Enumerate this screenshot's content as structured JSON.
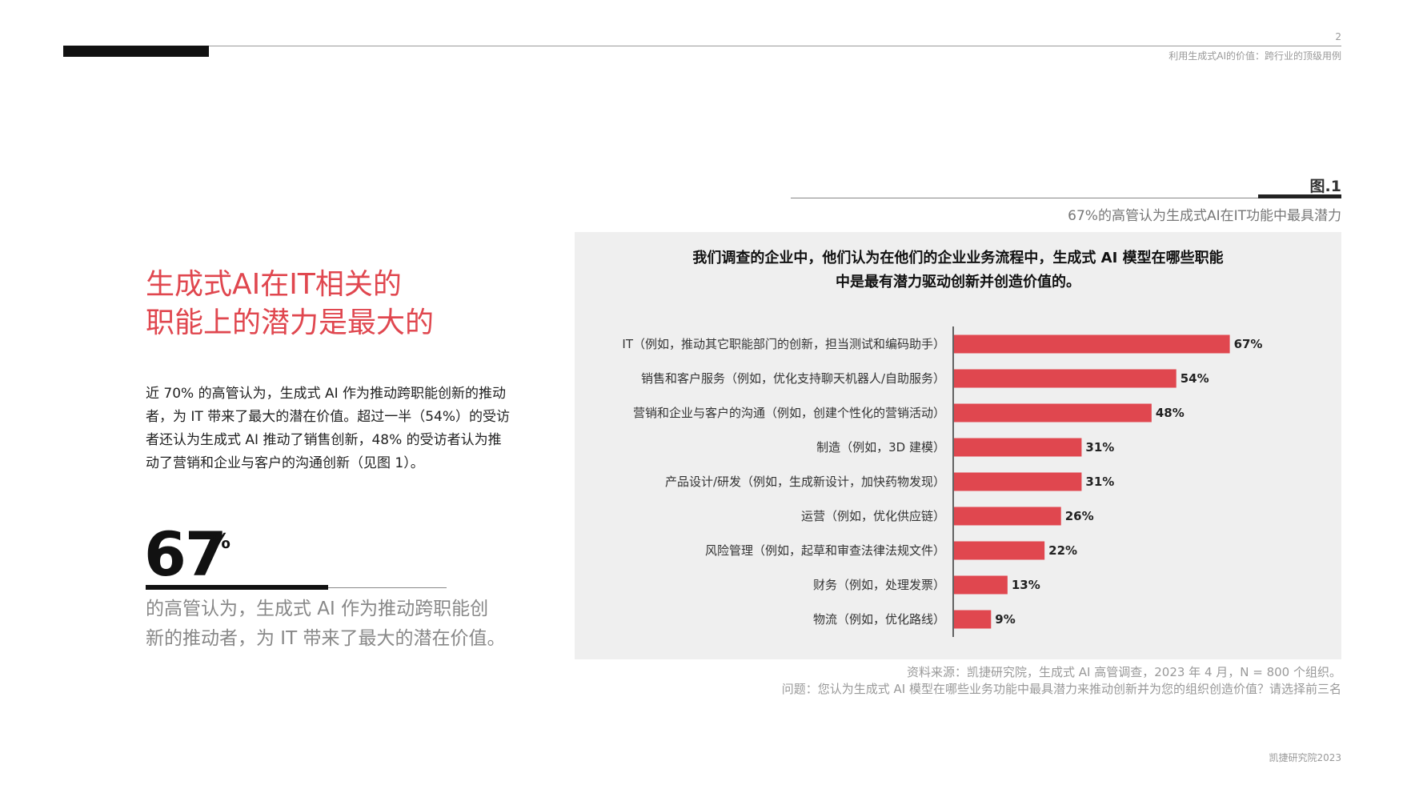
{
  "header": {
    "page_number": "2",
    "subtitle": "利用生成式AI的价值：跨行业的顶级用例"
  },
  "left": {
    "headline_line1": "生成式AI在IT相关的",
    "headline_line2": "职能上的潜力是最大的",
    "body": "近 70% 的高管认为，生成式 AI 作为推动跨职能创新的推动者，为 IT 带来了最大的潜在价值。超过一半（54%）的受访者还认为生成式 AI 推动了销售创新，48% 的受访者认为推动了营销和企业与客户的沟通创新（见图 1）。",
    "stat_number": "67",
    "stat_unit": "%",
    "stat_description": "的高管认为，生成式 AI 作为推动跨职能创新的推动者，为 IT 带来了最大的潜在价值。"
  },
  "figure": {
    "label": "图.1",
    "subtitle": "67%的高管认为生成式AI在IT功能中最具潜力"
  },
  "chart_data": {
    "type": "bar",
    "orientation": "horizontal",
    "title_line1": "我们调查的企业中，他们认为在他们的企业业务流程中，生成式 AI 模型在哪些职能",
    "title_line2": "中是最有潜力驱动创新并创造价值的。",
    "categories": [
      "IT（例如，推动其它职能部门的创新，担当测试和编码助手）",
      "销售和客户服务（例如，优化支持聊天机器人/自助服务）",
      "营销和企业与客户的沟通（例如，创建个性化的营销活动）",
      "制造（例如，3D 建模）",
      "产品设计/研发（例如，生成新设计，加快药物发现）",
      "运营（例如，优化供应链）",
      "风险管理（例如，起草和审查法律法规文件）",
      "财务（例如，处理发票）",
      "物流（例如，优化路线）"
    ],
    "values": [
      67,
      54,
      48,
      31,
      31,
      26,
      22,
      13,
      9
    ],
    "value_labels": [
      "67%",
      "54%",
      "48%",
      "31%",
      "31%",
      "26%",
      "22%",
      "13%",
      "9%"
    ],
    "unit": "%",
    "xlim": [
      0,
      70
    ],
    "grid": false,
    "bar_color": "#e0474f",
    "background_color": "#efefef"
  },
  "notes": {
    "source": "资料来源：凯捷研究院，生成式 AI 高管调查，2023 年 4 月，N = 800 个组织。",
    "question": "问题：您认为生成式 AI 模型在哪些业务功能中最具潜力来推动创新并为您的组织创造价值？请选择前三名"
  },
  "footer": {
    "text": "凯捷研究院2023"
  }
}
